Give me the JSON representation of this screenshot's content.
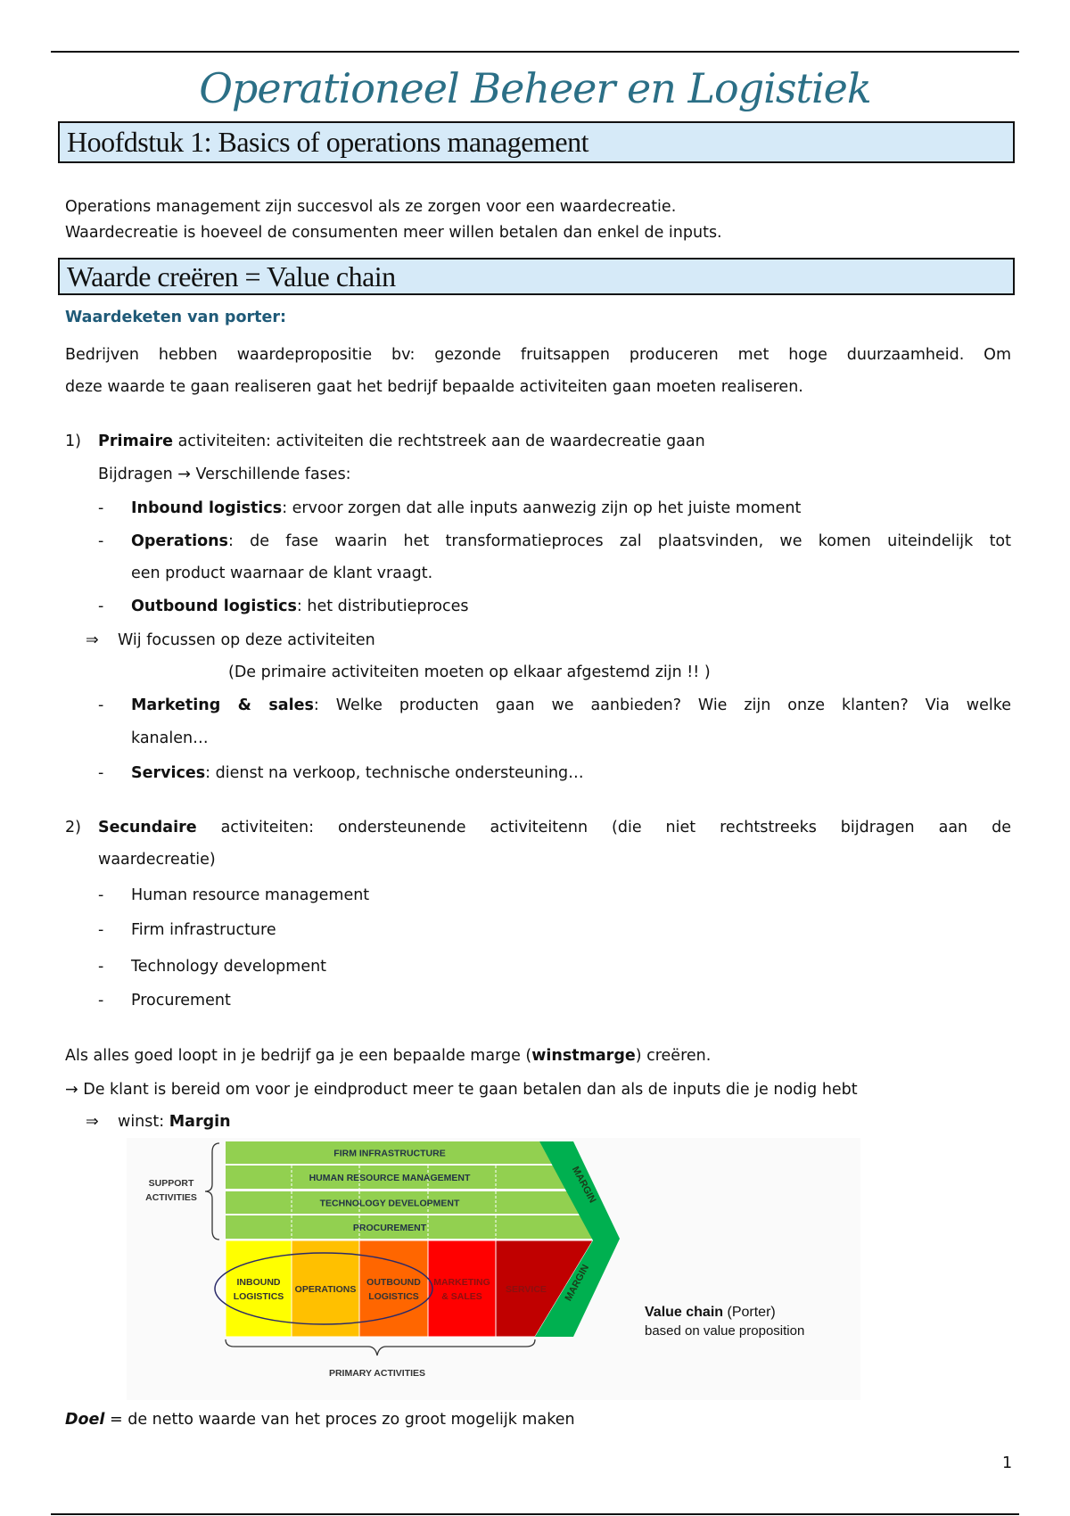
{
  "title": "Operationeel Beheer en Logistiek",
  "chapter": "Hoofdstuk 1: Basics of operations management",
  "intro": [
    "Operations management zijn succesvol als ze zorgen voor een waardecreatie.",
    "Waardecreatie is hoeveel de consumenten meer willen betalen dan enkel de inputs."
  ],
  "section": "Waarde creëren = Value chain",
  "subheading": "Waardeketen van porter:",
  "para": [
    "Bedrijven hebben waardepropositie bv: gezonde fruitsappen produceren met hoge duurzaamheid. Om",
    "deze waarde te gaan realiseren gaat het bedrijf bepaalde activiteiten gaan moeten realiseren."
  ],
  "primary": {
    "num": "1)",
    "bold": "Primaire",
    "text": " activiteiten: activiteiten die rechtstreek aan de waardecreatie gaan",
    "line2": "Bijdragen → Verschillende fases:",
    "items": [
      {
        "b": "Inbound logistics",
        "t": ": ervoor zorgen dat alle inputs aanwezig zijn op het juiste moment"
      },
      {
        "b": "Operations",
        "t": ": de fase waarin het transformatieproces zal plaatsvinden, we komen uiteindelijk tot",
        "t2": "een product waarnaar de klant vraagt."
      },
      {
        "b": "Outbound logistics",
        "t": ": het distributieproces"
      }
    ],
    "focus": "Wij focussen op deze activiteiten",
    "note": "(De primaire activiteiten moeten op elkaar afgestemd zijn !! )",
    "items2": [
      {
        "b": "Marketing & sales",
        "t": ": Welke producten gaan we aanbieden? Wie zijn onze klanten? Via welke",
        "t2": "kanalen…"
      },
      {
        "b": "Services",
        "t": ": dienst na verkoop, technische ondersteuning…"
      }
    ]
  },
  "secondary": {
    "num": "2)",
    "bold": "Secundaire",
    "text": " activiteiten: ondersteunende activiteitenn (die niet rechtstreeks bijdragen aan de",
    "line2": "waardecreatie)",
    "items": [
      "Human resource management",
      "Firm infrastructure",
      "Technology development",
      "Procurement"
    ]
  },
  "margin_text": {
    "l1a": "Als alles goed loopt in je bedrijf ga je een bepaalde marge (",
    "l1b": "winstmarge",
    "l1c": ") creëren.",
    "l2": "→ De klant is bereid om voor je eindproduct meer te gaan betalen dan als de inputs die je nodig hebt",
    "l3a": "winst: ",
    "l3b": "Margin"
  },
  "diagram": {
    "support": [
      "FIRM INFRASTRUCTURE",
      "HUMAN RESOURCE MANAGEMENT",
      "TECHNOLOGY DEVELOPMENT",
      "PROCUREMENT"
    ],
    "support_label": [
      "SUPPORT",
      "ACTIVITIES"
    ],
    "primary": [
      [
        "INBOUND",
        "LOGISTICS"
      ],
      [
        "OPERATIONS"
      ],
      [
        "OUTBOUND",
        "LOGISTICS"
      ],
      [
        "MARKETING",
        "& SALES"
      ],
      [
        "SERVICE"
      ]
    ],
    "primary_label": "PRIMARY ACTIVITIES",
    "margin": "MARGIN",
    "colors": {
      "support": "#92d050",
      "inbound": "#ffff00",
      "operations": "#ffc000",
      "outbound": "#ff6600",
      "marketing": "#ff0000",
      "service": "#c00000",
      "margin": "#00b050"
    },
    "caption_bold": "Value chain",
    "caption_rest": " (Porter)",
    "caption2": "based on value proposition"
  },
  "doel_b": "Doel",
  "doel": " = de netto waarde van het proces zo groot mogelijk maken",
  "page_number": "1"
}
